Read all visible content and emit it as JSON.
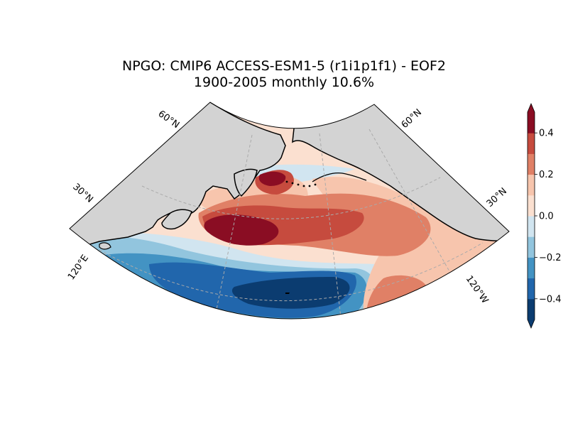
{
  "title": {
    "line1": "NPGO: CMIP6 ACCESS-ESM1-5 (r1i1p1f1) - EOF2",
    "line2": "1900-2005 monthly 10.6%"
  },
  "map": {
    "projection": "conic",
    "land_color": "#d3d3d3",
    "gridline_style": "dashed",
    "lat_labels": [
      "60°N",
      "30°N",
      "60°N",
      "30°N"
    ],
    "lon_labels": [
      "120°E",
      "120°W"
    ]
  },
  "colorbar": {
    "ticks": [
      "0.4",
      "0.2",
      "0.0",
      "−0.2",
      "−0.4"
    ],
    "levels": [
      -0.5,
      -0.4,
      -0.3,
      -0.2,
      -0.1,
      0.0,
      0.1,
      0.2,
      0.3,
      0.4,
      0.5
    ],
    "colors": [
      "#0b3c70",
      "#2166ac",
      "#4393c3",
      "#92c5de",
      "#d1e5f0",
      "#fbe0d0",
      "#f7c5ad",
      "#e08066",
      "#c64b3e",
      "#8a0d23"
    ],
    "extend": "both"
  }
}
